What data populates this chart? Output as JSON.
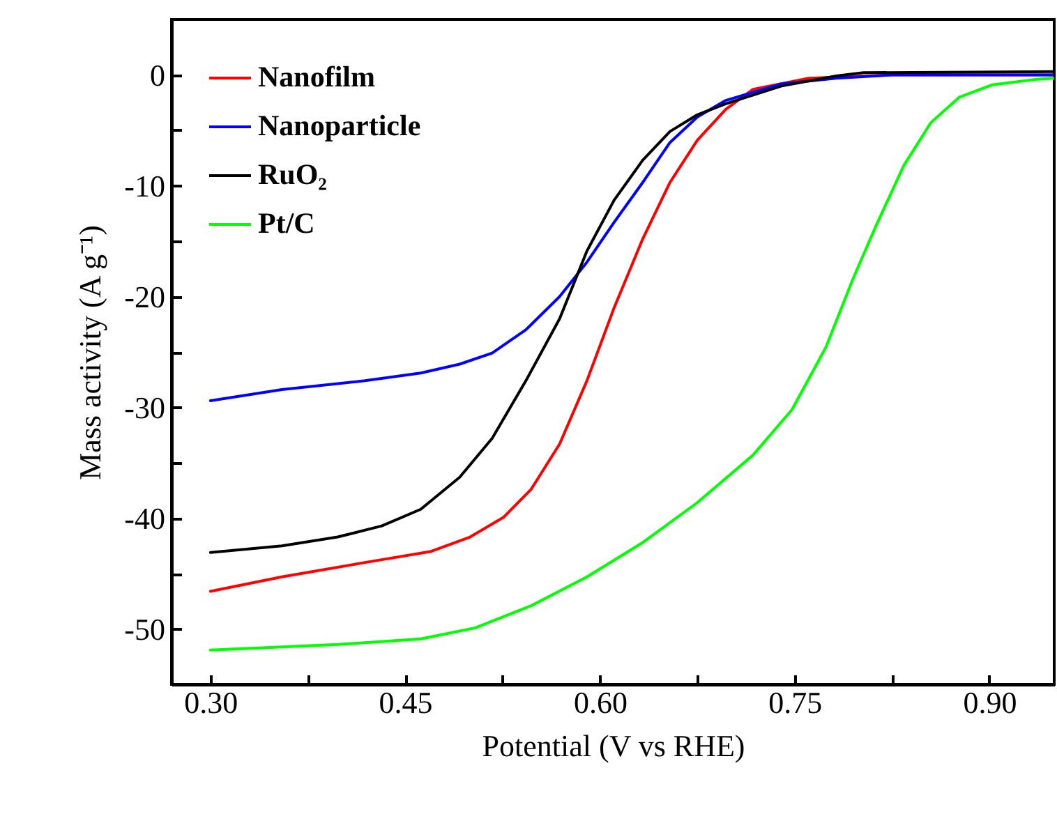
{
  "chart_data": {
    "type": "line",
    "xlabel": "Potential (V vs RHE)",
    "ylabel": "Mass activity (A g⁻¹)",
    "xlim": [
      0.27,
      0.95
    ],
    "ylim": [
      -55,
      5
    ],
    "xticks": [
      {
        "value": 0.3,
        "label": "0.30"
      },
      {
        "value": 0.375,
        "label": null
      },
      {
        "value": 0.45,
        "label": "0.45"
      },
      {
        "value": 0.525,
        "label": null
      },
      {
        "value": 0.6,
        "label": "0.60"
      },
      {
        "value": 0.675,
        "label": null
      },
      {
        "value": 0.75,
        "label": "0.75"
      },
      {
        "value": 0.825,
        "label": null
      },
      {
        "value": 0.9,
        "label": "0.90"
      }
    ],
    "yticks": [
      -50,
      {
        "value": -45,
        "label": null
      },
      -40,
      {
        "value": -35,
        "label": null
      },
      -30,
      {
        "value": -25,
        "label": null
      },
      -20,
      {
        "value": -15,
        "label": null
      },
      -10,
      {
        "value": -5,
        "label": null
      },
      0
    ],
    "legend": "top left",
    "grid": false,
    "line_style": "solid",
    "marker": "none",
    "series": [
      {
        "name": "Nanofilm",
        "color": "#ff0000",
        "x": [
          0.3,
          0.355,
          0.419,
          0.47,
          0.5,
          0.526,
          0.547,
          0.569,
          0.59,
          0.611,
          0.633,
          0.654,
          0.675,
          0.697,
          0.718,
          0.761,
          0.825,
          0.95
        ],
        "values": [
          -46.6,
          -45.3,
          -44.0,
          -43.0,
          -41.7,
          -39.9,
          -37.4,
          -33.3,
          -27.6,
          -21.0,
          -14.8,
          -9.7,
          -5.9,
          -3.1,
          -1.3,
          -0.3,
          0,
          0
        ]
      },
      {
        "name": "Nanoparticle",
        "color": "#0000ff",
        "x": [
          0.3,
          0.355,
          0.419,
          0.462,
          0.492,
          0.517,
          0.543,
          0.569,
          0.59,
          0.611,
          0.633,
          0.654,
          0.675,
          0.697,
          0.74,
          0.782,
          0.825,
          0.95
        ],
        "values": [
          -29.4,
          -28.4,
          -27.6,
          -26.9,
          -26.1,
          -25.1,
          -23.0,
          -20.0,
          -16.9,
          -13.3,
          -9.7,
          -6.1,
          -3.8,
          -2.3,
          -0.8,
          -0.3,
          0,
          0
        ]
      },
      {
        "name": "RuO₂",
        "color": "#000000",
        "x": [
          0.3,
          0.355,
          0.398,
          0.432,
          0.462,
          0.492,
          0.517,
          0.543,
          0.569,
          0.59,
          0.611,
          0.633,
          0.654,
          0.675,
          0.697,
          0.74,
          0.782,
          0.803,
          0.95
        ],
        "values": [
          -43.1,
          -42.5,
          -41.7,
          -40.7,
          -39.2,
          -36.3,
          -32.8,
          -27.6,
          -22.0,
          -15.9,
          -11.3,
          -7.7,
          -5.1,
          -3.6,
          -2.6,
          -1.0,
          -0.1,
          0.2,
          0.3
        ]
      },
      {
        "name": "Pt/C",
        "color": "#00ff00",
        "x": [
          0.3,
          0.398,
          0.462,
          0.504,
          0.547,
          0.59,
          0.633,
          0.675,
          0.718,
          0.748,
          0.774,
          0.795,
          0.812,
          0.834,
          0.855,
          0.877,
          0.902,
          0.936,
          0.95
        ],
        "values": [
          -51.9,
          -51.4,
          -50.9,
          -49.9,
          -47.9,
          -45.3,
          -42.2,
          -38.6,
          -34.3,
          -30.2,
          -24.6,
          -18.4,
          -13.8,
          -8.2,
          -4.3,
          -2.0,
          -0.9,
          -0.4,
          -0.3
        ]
      }
    ]
  }
}
